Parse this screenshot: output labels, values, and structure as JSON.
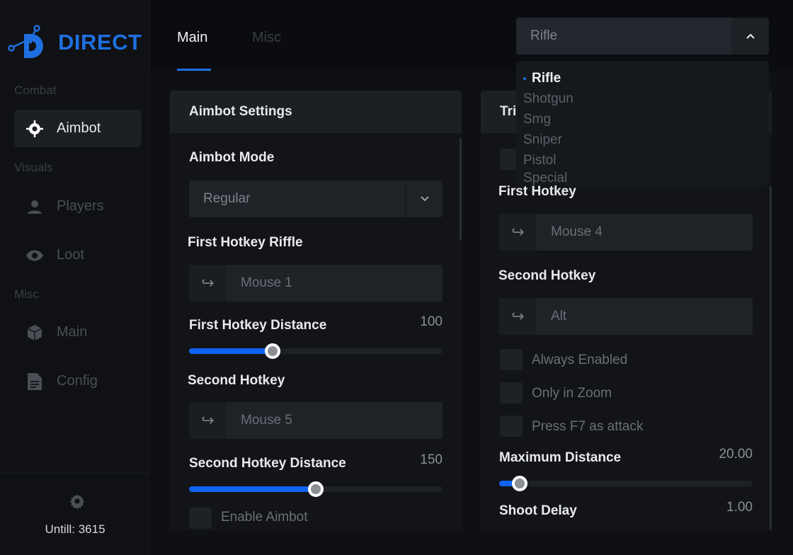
{
  "brand": {
    "name": "DIRECT",
    "color": "#1f6fe0"
  },
  "sidebar": {
    "sections": [
      {
        "title": "Combat",
        "items": [
          {
            "label": "Aimbot",
            "icon": "crosshair-icon",
            "active": true
          }
        ]
      },
      {
        "title": "Visuals",
        "items": [
          {
            "label": "Players",
            "icon": "person-icon"
          },
          {
            "label": "Loot",
            "icon": "eye-icon"
          }
        ]
      },
      {
        "title": "Misc",
        "items": [
          {
            "label": "Main",
            "icon": "cube-icon"
          },
          {
            "label": "Config",
            "icon": "document-icon"
          }
        ]
      }
    ],
    "footer": {
      "icon": "gear-icon",
      "text": "Untill: 3615"
    }
  },
  "tabs": [
    {
      "label": "Main",
      "active": true
    },
    {
      "label": "Misc",
      "active": false
    }
  ],
  "weapon_select": {
    "value": "Rifle",
    "open": true,
    "options": [
      "Rifle",
      "Shotgun",
      "Smg",
      "Sniper",
      "Pistol",
      "Special"
    ],
    "selected": "Rifle"
  },
  "aimbot_panel": {
    "title": "Aimbot Settings",
    "mode_label": "Aimbot Mode",
    "mode_value": "Regular",
    "first_hotkey_label": "First Hotkey Riffle",
    "first_hotkey_value": "Mouse 1",
    "first_distance_label": "First Hotkey Distance",
    "first_distance_value": "100",
    "first_distance_fill_pct": 33,
    "second_hotkey_label": "Second Hotkey",
    "second_hotkey_value": "Mouse 5",
    "second_distance_label": "Second Hotkey Distance",
    "second_distance_value": "150",
    "second_distance_fill_pct": 50,
    "enable_label": "Enable Aimbot"
  },
  "trigger_panel": {
    "title": "Tri",
    "first_hotkey_label": "First Hotkey",
    "first_hotkey_value": "Mouse 4",
    "second_hotkey_label": "Second Hotkey",
    "second_hotkey_value": "Alt",
    "checkboxes": [
      "Always Enabled",
      "Only in Zoom",
      "Press F7 as attack"
    ],
    "max_distance_label": "Maximum Distance",
    "max_distance_value": "20.00",
    "max_distance_fill_pct": 8,
    "shoot_delay_label": "Shoot Delay",
    "shoot_delay_value": "1.00"
  }
}
